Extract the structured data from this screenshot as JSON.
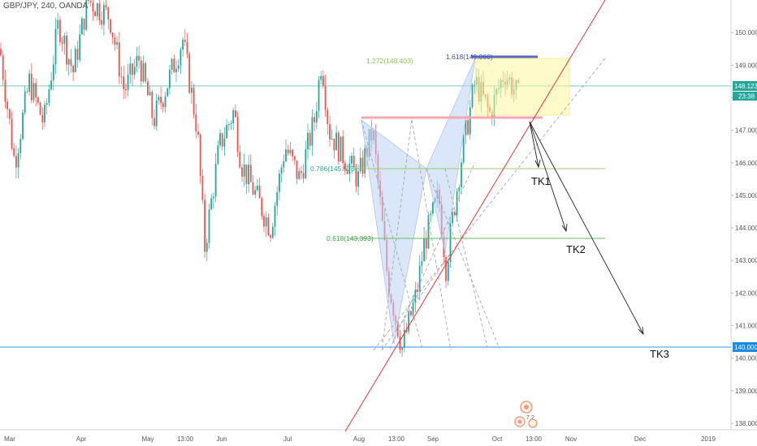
{
  "header": {
    "symbol": "GBP/JPY, 240, OANDA"
  },
  "price_axis": {
    "ticks": [
      "150.000",
      "149.000",
      "148.000",
      "147.000",
      "146.000",
      "145.000",
      "144.000",
      "143.000",
      "142.000",
      "141.000",
      "140.000",
      "139.000",
      "138.000"
    ],
    "last_price_label": "148.123",
    "countdown_label": "23:38",
    "level_label": "140.000"
  },
  "time_axis": {
    "labels": [
      "Mar",
      "Apr",
      "May",
      "13:00",
      "Jun",
      "Jul",
      "Aug",
      "13:00",
      "Sep",
      "Oct",
      "13:00",
      "Nov",
      "Dec",
      "2019"
    ]
  },
  "annotations": {
    "fib_1618": "1.618(149.066)",
    "fib_1272": "1.272(148.403)",
    "fib_0786": "0.786(145.575)",
    "fib_0618": "0.618(143.393)",
    "tk1": "TK1",
    "tk2": "TK2",
    "tk3": "TK3"
  },
  "chart_data": {
    "type": "candlestick",
    "symbol": "GBP/JPY",
    "timeframe": "240",
    "source": "OANDA",
    "ylim": [
      137.8,
      151.0
    ],
    "x_labels": [
      "Mar",
      "Apr",
      "May",
      "13:00",
      "Jun",
      "Jul",
      "Aug",
      "13:00",
      "Sep",
      "Oct",
      "13:00",
      "Nov",
      "Dec",
      "2019"
    ],
    "price_path": [
      [
        0.0,
        149.5
      ],
      [
        0.02,
        146.0
      ],
      [
        0.04,
        148.5
      ],
      [
        0.06,
        147.2
      ],
      [
        0.08,
        150.3
      ],
      [
        0.1,
        148.8
      ],
      [
        0.12,
        151.0
      ],
      [
        0.15,
        150.5
      ],
      [
        0.17,
        148.2
      ],
      [
        0.19,
        149.2
      ],
      [
        0.21,
        147.3
      ],
      [
        0.23,
        148.5
      ],
      [
        0.25,
        149.8
      ],
      [
        0.27,
        147.0
      ],
      [
        0.28,
        143.4
      ],
      [
        0.3,
        146.5
      ],
      [
        0.32,
        147.6
      ],
      [
        0.33,
        146.0
      ],
      [
        0.35,
        145.0
      ],
      [
        0.37,
        144.0
      ],
      [
        0.39,
        146.5
      ],
      [
        0.41,
        145.5
      ],
      [
        0.43,
        147.3
      ],
      [
        0.44,
        149.2
      ],
      [
        0.45,
        147.0
      ],
      [
        0.47,
        146.2
      ],
      [
        0.49,
        145.5
      ],
      [
        0.51,
        147.0
      ],
      [
        0.53,
        142.5
      ],
      [
        0.55,
        140.3
      ],
      [
        0.57,
        142.0
      ],
      [
        0.58,
        143.5
      ],
      [
        0.6,
        145.0
      ],
      [
        0.61,
        142.8
      ],
      [
        0.63,
        146.0
      ],
      [
        0.65,
        148.5
      ],
      [
        0.67,
        147.5
      ],
      [
        0.69,
        148.8
      ],
      [
        0.71,
        148.0
      ]
    ],
    "levels": [
      {
        "label": "1.618",
        "value": 149.066
      },
      {
        "label": "1.272",
        "value": 148.403
      },
      {
        "label": "0.786",
        "value": 145.575
      },
      {
        "label": "0.618",
        "value": 143.393
      },
      {
        "label": "last",
        "value": 148.123
      },
      {
        "label": "horizontal",
        "value": 140.0
      }
    ],
    "targets": [
      "TK1",
      "TK2",
      "TK3"
    ],
    "colors": {
      "up": "#26a69a",
      "down": "#ef5350",
      "trend": "#e53935",
      "pattern": "#bcd2f5",
      "target_box": "#fff7b0",
      "level": "#80cbc4"
    },
    "grid": false
  }
}
